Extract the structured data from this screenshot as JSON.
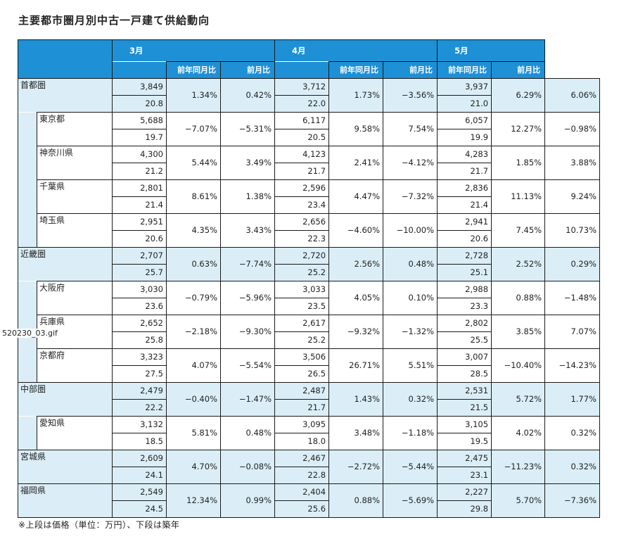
{
  "title": "主要都市圏月別中古一戸建て供給動向",
  "note": "※上段は価格（単位：万円）、下段は築年",
  "image_label": "520230_03.gif",
  "months": [
    "3月",
    "4月",
    "5月"
  ],
  "sub_headers": {
    "yoy": "前年同月比",
    "mom": "前月比"
  },
  "groups": [
    {
      "name": "首都圏",
      "data": [
        [
          "3,849",
          "20.8",
          "1.34%",
          "0.42%"
        ],
        [
          "3,712",
          "22.0",
          "1.73%",
          "−3.56%"
        ],
        [
          "3,937",
          "21.0",
          "6.29%",
          "6.06%"
        ]
      ],
      "children": [
        {
          "name": "東京都",
          "data": [
            [
              "5,688",
              "19.7",
              "−7.07%",
              "−5.31%"
            ],
            [
              "6,117",
              "20.5",
              "9.58%",
              "7.54%"
            ],
            [
              "6,057",
              "19.9",
              "12.27%",
              "−0.98%"
            ]
          ]
        },
        {
          "name": "神奈川県",
          "data": [
            [
              "4,300",
              "21.2",
              "5.44%",
              "3.49%"
            ],
            [
              "4,123",
              "21.7",
              "2.41%",
              "−4.12%"
            ],
            [
              "4,283",
              "21.7",
              "1.85%",
              "3.88%"
            ]
          ]
        },
        {
          "name": "千葉県",
          "data": [
            [
              "2,801",
              "21.4",
              "8.61%",
              "1.38%"
            ],
            [
              "2,596",
              "23.4",
              "4.47%",
              "−7.32%"
            ],
            [
              "2,836",
              "21.4",
              "11.13%",
              "9.24%"
            ]
          ]
        },
        {
          "name": "埼玉県",
          "data": [
            [
              "2,951",
              "20.6",
              "4.35%",
              "3.43%"
            ],
            [
              "2,656",
              "22.3",
              "−4.60%",
              "−10.00%"
            ],
            [
              "2,941",
              "20.6",
              "7.45%",
              "10.73%"
            ]
          ]
        }
      ]
    },
    {
      "name": "近畿圏",
      "data": [
        [
          "2,707",
          "25.7",
          "0.63%",
          "−7.74%"
        ],
        [
          "2,720",
          "25.2",
          "2.56%",
          "0.48%"
        ],
        [
          "2,728",
          "25.1",
          "2.52%",
          "0.29%"
        ]
      ],
      "children": [
        {
          "name": "大阪府",
          "data": [
            [
              "3,030",
              "23.6",
              "−0.79%",
              "−5.96%"
            ],
            [
              "3,033",
              "23.5",
              "4.05%",
              "0.10%"
            ],
            [
              "2,988",
              "23.3",
              "0.88%",
              "−1.48%"
            ]
          ]
        },
        {
          "name": "兵庫県",
          "data": [
            [
              "2,652",
              "25.8",
              "−2.18%",
              "−9.30%"
            ],
            [
              "2,617",
              "25.2",
              "−9.32%",
              "−1.32%"
            ],
            [
              "2,802",
              "25.5",
              "3.85%",
              "7.07%"
            ]
          ]
        },
        {
          "name": "京都府",
          "data": [
            [
              "3,323",
              "27.5",
              "4.07%",
              "−5.54%"
            ],
            [
              "3,506",
              "26.5",
              "26.71%",
              "5.51%"
            ],
            [
              "3,007",
              "28.5",
              "−10.40%",
              "−14.23%"
            ]
          ]
        }
      ]
    },
    {
      "name": "中部圏",
      "data": [
        [
          "2,479",
          "22.2",
          "−0.40%",
          "−1.47%"
        ],
        [
          "2,487",
          "21.7",
          "1.43%",
          "0.32%"
        ],
        [
          "2,531",
          "21.5",
          "5.72%",
          "1.77%"
        ]
      ],
      "children": [
        {
          "name": "愛知県",
          "data": [
            [
              "3,132",
              "18.5",
              "5.81%",
              "0.48%"
            ],
            [
              "3,095",
              "18.0",
              "3.48%",
              "−1.18%"
            ],
            [
              "3,105",
              "19.5",
              "4.02%",
              "0.32%"
            ]
          ]
        }
      ]
    },
    {
      "name": "宮城県",
      "data": [
        [
          "2,609",
          "24.1",
          "4.70%",
          "−0.08%"
        ],
        [
          "2,467",
          "22.8",
          "−2.72%",
          "−5.44%"
        ],
        [
          "2,475",
          "23.1",
          "−11.23%",
          "0.32%"
        ]
      ],
      "children": []
    },
    {
      "name": "福岡県",
      "data": [
        [
          "2,549",
          "24.5",
          "12.34%",
          "0.99%"
        ],
        [
          "2,404",
          "25.6",
          "0.88%",
          "−5.69%"
        ],
        [
          "2,227",
          "29.8",
          "5.70%",
          "−7.36%"
        ]
      ],
      "children": []
    }
  ]
}
